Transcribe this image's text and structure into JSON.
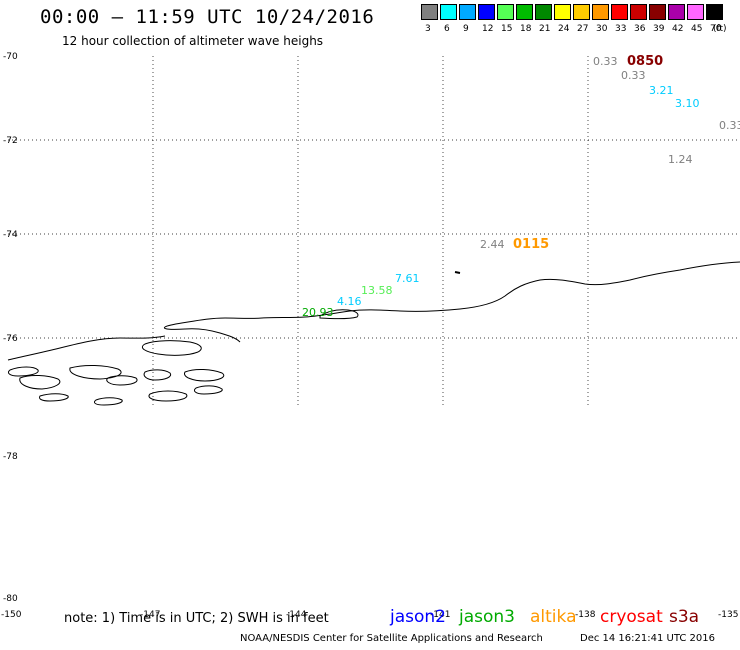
{
  "header": {
    "title": "00:00 – 11:59 UTC 10/24/2016",
    "subtitle": "12 hour collection of altimeter wave heighs"
  },
  "legend": {
    "swatches": [
      {
        "color": "#808080",
        "label": "3"
      },
      {
        "color": "#00ffff",
        "label": "6"
      },
      {
        "color": "#00aaff",
        "label": "9"
      },
      {
        "color": "#0000ff",
        "label": "12"
      },
      {
        "color": "#55ff55",
        "label": "15"
      },
      {
        "color": "#00bb00",
        "label": "18"
      },
      {
        "color": "#008800",
        "label": "21"
      },
      {
        "color": "#ffff00",
        "label": "24"
      },
      {
        "color": "#ffcc00",
        "label": "27"
      },
      {
        "color": "#ff9900",
        "label": "30"
      },
      {
        "color": "#ff0000",
        "label": "33"
      },
      {
        "color": "#cc0000",
        "label": "36"
      },
      {
        "color": "#880000",
        "label": "39"
      },
      {
        "color": "#aa00aa",
        "label": "42"
      },
      {
        "color": "#ff66ff",
        "label": "45"
      },
      {
        "color": "#000000",
        "label": "70"
      }
    ],
    "unit": "(ft)"
  },
  "axes": {
    "lat_labels": [
      "-70",
      "-72",
      "-74",
      "-76",
      "-78",
      "-80"
    ],
    "lon_labels": [
      "-150",
      "-147",
      "-144",
      "-141",
      "-138",
      "-135"
    ]
  },
  "wave_points": [
    {
      "label": "0.33",
      "color": "#808080"
    },
    {
      "label": "0850",
      "color": "#880000"
    },
    {
      "label": "0.33",
      "color": "#808080"
    },
    {
      "label": "3.21",
      "color": "#00ccff"
    },
    {
      "label": "3.10",
      "color": "#00ccff"
    },
    {
      "label": "0.33",
      "color": "#808080"
    },
    {
      "label": "1.24",
      "color": "#808080"
    },
    {
      "label": "2.44",
      "color": "#808080"
    },
    {
      "label": "0115",
      "color": "#ff9900"
    },
    {
      "label": "7.61",
      "color": "#00ccff"
    },
    {
      "label": "13.58",
      "color": "#55ee55"
    },
    {
      "label": "4.16",
      "color": "#00ccff"
    },
    {
      "label": "20.93",
      "color": "#00aa00"
    }
  ],
  "footer": {
    "note": "note: 1) Time is in UTC; 2) SWH is in feet",
    "satellites": [
      {
        "name": "jason2",
        "color": "#0000ff"
      },
      {
        "name": "jason3",
        "color": "#00aa00"
      },
      {
        "name": "altika",
        "color": "#ff9900"
      },
      {
        "name": "cryosat",
        "color": "#ff0000"
      },
      {
        "name": "s3a",
        "color": "#880000"
      }
    ],
    "credit": "NOAA/NESDIS Center for Satellite Applications and Research",
    "generated": "Dec 14 16:21:41 UTC 2016"
  }
}
